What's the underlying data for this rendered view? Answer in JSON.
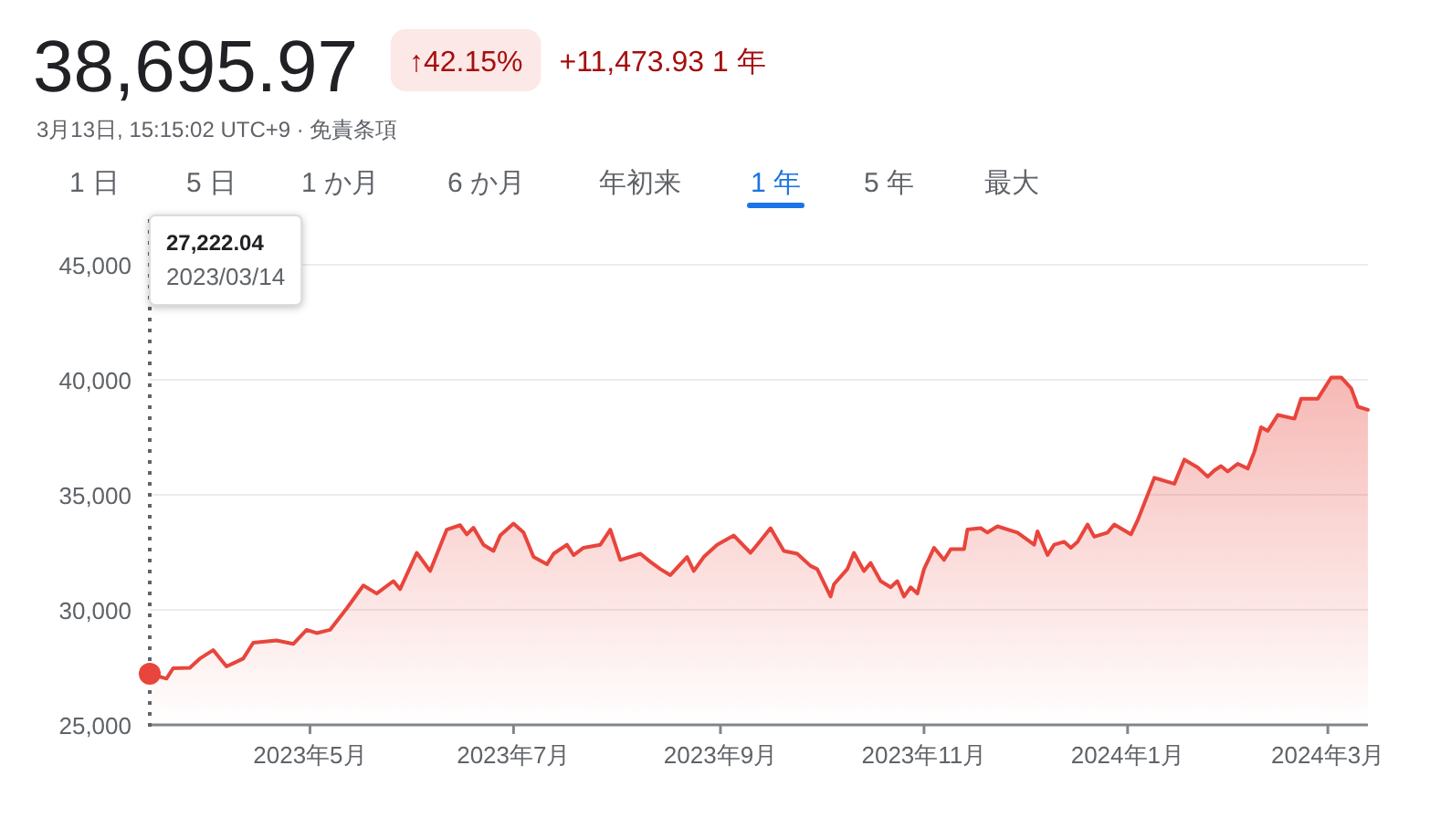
{
  "chart_data": {
    "type": "area",
    "title": "38,695.97",
    "subtitle": "3月13日, 15:15:02 UTC+9 · 免責条項",
    "annotations": [
      "↑42.15%",
      "+11,473.93 1 年",
      "1 日",
      "5 日",
      "1 か月",
      "6 か月",
      "年初来",
      "1 年",
      "5 年",
      "最大",
      "27,222.04",
      "2023/03/14"
    ],
    "series": [
      {
        "color": "#e8453c",
        "x": [
          "2023-03-14",
          "2023-03-19",
          "2023-03-21",
          "2023-03-26",
          "2023-03-29",
          "2023-04-02",
          "2023-04-06",
          "2023-04-11",
          "2023-04-14",
          "2023-04-21",
          "2023-04-26",
          "2023-04-30",
          "2023-05-03",
          "2023-05-07",
          "2023-05-12",
          "2023-05-17",
          "2023-05-21",
          "2023-05-26",
          "2023-05-28",
          "2023-06-02",
          "2023-06-06",
          "2023-06-11",
          "2023-06-15",
          "2023-06-17",
          "2023-06-19",
          "2023-06-22",
          "2023-06-25",
          "2023-06-27",
          "2023-07-01",
          "2023-07-04",
          "2023-07-07",
          "2023-07-11",
          "2023-07-13",
          "2023-07-17",
          "2023-07-19",
          "2023-07-22",
          "2023-07-27",
          "2023-07-30",
          "2023-08-02",
          "2023-08-08",
          "2023-08-11",
          "2023-08-14",
          "2023-08-17",
          "2023-08-22",
          "2023-08-24",
          "2023-08-27",
          "2023-08-31",
          "2023-09-05",
          "2023-09-10",
          "2023-09-12",
          "2023-09-16",
          "2023-09-20",
          "2023-09-24",
          "2023-09-28",
          "2023-09-30",
          "2023-10-04",
          "2023-10-05",
          "2023-10-09",
          "2023-10-11",
          "2023-10-14",
          "2023-10-16",
          "2023-10-19",
          "2023-10-22",
          "2023-10-24",
          "2023-10-26",
          "2023-10-28",
          "2023-10-30",
          "2023-11-01",
          "2023-11-04",
          "2023-11-07",
          "2023-11-09",
          "2023-11-13",
          "2023-11-14",
          "2023-11-18",
          "2023-11-20",
          "2023-11-23",
          "2023-11-29",
          "2023-12-04",
          "2023-12-05",
          "2023-12-08",
          "2023-12-10",
          "2023-12-13",
          "2023-12-15",
          "2023-12-17",
          "2023-12-20",
          "2023-12-22",
          "2023-12-26",
          "2023-12-28",
          "2024-01-02",
          "2024-01-04",
          "2024-01-09",
          "2024-01-12",
          "2024-01-15",
          "2024-01-18",
          "2024-01-22",
          "2024-01-25",
          "2024-01-27",
          "2024-01-29",
          "2024-01-31",
          "2024-02-03",
          "2024-02-06",
          "2024-02-08",
          "2024-02-10",
          "2024-02-12",
          "2024-02-15",
          "2024-02-20",
          "2024-02-22",
          "2024-02-27",
          "2024-03-02",
          "2024-03-05",
          "2024-03-08",
          "2024-03-10",
          "2024-03-13"
        ],
        "values": [
          27222.04,
          27010,
          27460,
          27480,
          27880,
          28250,
          27540,
          27880,
          28570,
          28670,
          28520,
          29130,
          28990,
          29130,
          30060,
          31060,
          30710,
          31250,
          30900,
          32480,
          31690,
          33490,
          33680,
          33280,
          33570,
          32830,
          32560,
          33230,
          33750,
          33360,
          32300,
          31980,
          32440,
          32830,
          32380,
          32700,
          32830,
          33490,
          32170,
          32440,
          32090,
          31770,
          31510,
          32300,
          31690,
          32300,
          32830,
          33230,
          32480,
          32830,
          33550,
          32560,
          32440,
          31910,
          31770,
          30580,
          31110,
          31770,
          32480,
          31690,
          32040,
          31250,
          30980,
          31250,
          30580,
          30980,
          30710,
          31770,
          32700,
          32170,
          32640,
          32640,
          33490,
          33550,
          33360,
          33630,
          33360,
          32830,
          33410,
          32380,
          32830,
          32960,
          32700,
          32960,
          33710,
          33180,
          33360,
          33710,
          33280,
          33890,
          35740,
          35610,
          35480,
          36530,
          36190,
          35790,
          36060,
          36250,
          36010,
          36350,
          36140,
          36880,
          37940,
          37780,
          38470,
          38310,
          39180,
          39180,
          40100,
          40100,
          39630,
          38830,
          38695.97
        ]
      }
    ],
    "xlim": [
      "2023-03-14",
      "2024-03-13"
    ],
    "xticks": [
      {
        "value": "2023-05-01",
        "label": "2023年5月"
      },
      {
        "value": "2023-07-01",
        "label": "2023年7月"
      },
      {
        "value": "2023-09-01",
        "label": "2023年9月"
      },
      {
        "value": "2023-11-01",
        "label": "2023年11月"
      },
      {
        "value": "2024-01-01",
        "label": "2024年1月"
      },
      {
        "value": "2024-03-01",
        "label": "2024年3月"
      }
    ],
    "ylim": [
      25000,
      45000
    ],
    "yticks": [
      {
        "value": 25000,
        "label": "25,000"
      },
      {
        "value": 30000,
        "label": "30,000"
      },
      {
        "value": 35000,
        "label": "35,000"
      },
      {
        "value": 40000,
        "label": "40,000"
      },
      {
        "value": 45000,
        "label": "45,000"
      }
    ],
    "grid": "y",
    "ref_lines": [
      {
        "axis": "x",
        "value": "2023-03-14",
        "line_style": "dotted",
        "color": "#5f6368"
      }
    ]
  }
}
